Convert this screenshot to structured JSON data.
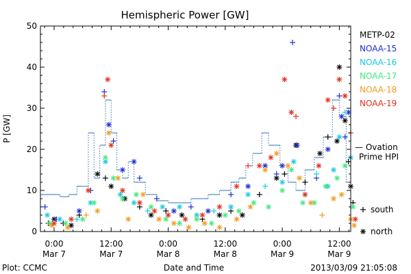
{
  "chart_data": {
    "type": "scatter",
    "title": "Hemispheric Power [GW]",
    "ylabel": "P [GW]",
    "xlabel": "Date and Time",
    "ylim": [
      0,
      50
    ],
    "yticks": [
      0,
      10,
      20,
      30,
      40,
      50
    ],
    "xlim": [
      -0.12,
      2.6
    ],
    "x_unit": "days since Mar 7 00:00 UT",
    "xticks": [
      {
        "x": 0.0,
        "line1": "0:00",
        "line2": "Mar 7"
      },
      {
        "x": 0.5,
        "line1": "12:00",
        "line2": "Mar 7"
      },
      {
        "x": 1.0,
        "line1": "0:00",
        "line2": "Mar 8"
      },
      {
        "x": 1.5,
        "line1": "12:00",
        "line2": "Mar 8"
      },
      {
        "x": 2.0,
        "line1": "0:00",
        "line2": "Mar 9"
      },
      {
        "x": 2.5,
        "line1": "12:00",
        "line2": "Mar 9"
      }
    ],
    "footer_left": "Plot: CCMC",
    "footer_right": "2013/03/09 21:05:08",
    "legend": [
      {
        "name": "METP-02",
        "color": "#000000"
      },
      {
        "name": "NOAA-15",
        "color": "#1a2ccf"
      },
      {
        "name": "NOAA-16",
        "color": "#19c8e0"
      },
      {
        "name": "NOAA-17",
        "color": "#3fe87a"
      },
      {
        "name": "NOAA-18",
        "color": "#f39a1e"
      },
      {
        "name": "NOAA-19",
        "color": "#e0301e"
      }
    ],
    "ovation": {
      "label_line1": "— Ovation",
      "label_line2": "Prime HPI",
      "color": "#2a70b8",
      "steps": [
        [
          -0.12,
          9
        ],
        [
          0.0,
          9
        ],
        [
          0.05,
          8.5
        ],
        [
          0.13,
          9
        ],
        [
          0.2,
          11
        ],
        [
          0.3,
          24
        ],
        [
          0.35,
          13
        ],
        [
          0.4,
          21
        ],
        [
          0.45,
          32
        ],
        [
          0.5,
          24
        ],
        [
          0.55,
          15
        ],
        [
          0.6,
          13
        ],
        [
          0.65,
          17
        ],
        [
          0.7,
          12
        ],
        [
          0.8,
          9
        ],
        [
          0.9,
          7.5
        ],
        [
          1.0,
          7
        ],
        [
          1.2,
          8
        ],
        [
          1.35,
          9
        ],
        [
          1.45,
          10
        ],
        [
          1.55,
          12
        ],
        [
          1.62,
          13
        ],
        [
          1.68,
          16
        ],
        [
          1.74,
          19
        ],
        [
          1.82,
          24
        ],
        [
          1.88,
          21
        ],
        [
          1.98,
          16
        ],
        [
          2.05,
          12
        ],
        [
          2.12,
          10
        ],
        [
          2.2,
          15
        ],
        [
          2.28,
          18
        ],
        [
          2.36,
          23
        ],
        [
          2.44,
          32
        ],
        [
          2.5,
          28
        ],
        [
          2.56,
          12
        ],
        [
          2.6,
          9
        ]
      ]
    },
    "marker_legend": [
      {
        "symbol": "+",
        "label": "south"
      },
      {
        "symbol": "*",
        "label": "north"
      }
    ],
    "series": [
      {
        "name": "METP-02",
        "color": "#000000",
        "points": [
          [
            -0.05,
            2,
            "+"
          ],
          [
            0.0,
            3,
            "*"
          ],
          [
            0.08,
            2,
            "+"
          ],
          [
            0.15,
            1.5,
            "*"
          ],
          [
            0.22,
            4,
            "+"
          ],
          [
            0.38,
            14,
            "*"
          ],
          [
            0.45,
            13,
            "+"
          ],
          [
            0.5,
            11,
            "*"
          ],
          [
            0.62,
            8,
            "*"
          ],
          [
            0.75,
            6,
            "+"
          ],
          [
            0.85,
            4,
            "*"
          ],
          [
            0.98,
            5,
            "+"
          ],
          [
            1.12,
            4,
            "*"
          ],
          [
            1.3,
            3,
            "+"
          ],
          [
            1.45,
            4,
            "*"
          ],
          [
            1.55,
            5,
            "+"
          ],
          [
            1.65,
            4,
            "*"
          ],
          [
            1.8,
            9,
            "+"
          ],
          [
            1.95,
            13,
            "*"
          ],
          [
            2.02,
            14,
            "+"
          ],
          [
            2.12,
            21,
            "*"
          ],
          [
            2.2,
            12,
            "+"
          ],
          [
            2.33,
            19,
            "*"
          ],
          [
            2.4,
            23,
            "+"
          ],
          [
            2.48,
            22,
            "*"
          ],
          [
            2.5,
            40,
            "*"
          ],
          [
            2.55,
            27,
            "*"
          ],
          [
            2.58,
            17,
            "+"
          ],
          [
            2.6,
            11,
            "*"
          ],
          [
            2.62,
            7,
            "+"
          ]
        ]
      },
      {
        "name": "NOAA-15",
        "color": "#1a2ccf",
        "points": [
          [
            -0.08,
            6,
            "+"
          ],
          [
            0.02,
            3,
            "+"
          ],
          [
            0.22,
            5,
            "*"
          ],
          [
            0.32,
            10,
            "+"
          ],
          [
            0.44,
            34,
            "+"
          ],
          [
            0.48,
            26,
            "*"
          ],
          [
            0.52,
            22,
            "+"
          ],
          [
            0.6,
            15,
            "*"
          ],
          [
            0.7,
            17,
            "*"
          ],
          [
            0.75,
            13,
            "+"
          ],
          [
            0.9,
            8,
            "+"
          ],
          [
            1.05,
            5,
            "*"
          ],
          [
            1.2,
            6,
            "+"
          ],
          [
            1.35,
            5,
            "*"
          ],
          [
            1.55,
            9,
            "+"
          ],
          [
            1.7,
            11,
            "*"
          ],
          [
            1.85,
            16,
            "*"
          ],
          [
            1.95,
            14,
            "+"
          ],
          [
            2.0,
            16,
            "*"
          ],
          [
            2.09,
            46,
            "+"
          ],
          [
            2.13,
            21,
            "*"
          ],
          [
            2.3,
            13,
            "+"
          ],
          [
            2.4,
            20,
            "*"
          ],
          [
            2.5,
            33,
            "+"
          ],
          [
            2.52,
            28,
            "*"
          ],
          [
            2.55,
            23,
            "+"
          ],
          [
            2.58,
            29,
            "*"
          ]
        ]
      },
      {
        "name": "NOAA-16",
        "color": "#19c8e0",
        "points": [
          [
            -0.06,
            4,
            "*"
          ],
          [
            0.05,
            3,
            "*"
          ],
          [
            0.2,
            3,
            "+"
          ],
          [
            0.32,
            7,
            "*"
          ],
          [
            0.45,
            17,
            "*"
          ],
          [
            0.58,
            9,
            "*"
          ],
          [
            0.7,
            7,
            "*"
          ],
          [
            0.82,
            5,
            "+"
          ],
          [
            0.95,
            6,
            "*"
          ],
          [
            1.1,
            6,
            "*"
          ],
          [
            1.25,
            4,
            "*"
          ],
          [
            1.4,
            5,
            "+"
          ],
          [
            1.55,
            6,
            "*"
          ],
          [
            1.7,
            9,
            "*"
          ],
          [
            1.85,
            11,
            "+"
          ],
          [
            2.0,
            12,
            "*"
          ],
          [
            2.1,
            17,
            "*"
          ],
          [
            2.2,
            9,
            "*"
          ],
          [
            2.3,
            14,
            "+"
          ],
          [
            2.4,
            11,
            "*"
          ],
          [
            2.45,
            15,
            "*"
          ],
          [
            2.5,
            23,
            "*"
          ],
          [
            2.55,
            29,
            "+"
          ],
          [
            2.6,
            18,
            "*"
          ]
        ]
      },
      {
        "name": "NOAA-17",
        "color": "#3fe87a",
        "points": [
          [
            -0.04,
            2,
            "*"
          ],
          [
            0.1,
            2,
            "*"
          ],
          [
            0.25,
            3,
            "*"
          ],
          [
            0.35,
            7,
            "*"
          ],
          [
            0.45,
            18,
            "*"
          ],
          [
            0.52,
            13,
            "*"
          ],
          [
            0.6,
            8,
            "*"
          ],
          [
            0.72,
            9,
            "*"
          ],
          [
            0.85,
            6,
            "*"
          ],
          [
            0.98,
            3,
            "*"
          ],
          [
            1.1,
            2,
            "*"
          ],
          [
            1.25,
            3,
            "*"
          ],
          [
            1.38,
            2,
            "*"
          ],
          [
            1.5,
            4,
            "*"
          ],
          [
            1.62,
            5,
            "*"
          ],
          [
            1.75,
            7,
            "*"
          ],
          [
            1.88,
            6,
            "*"
          ],
          [
            2.0,
            10,
            "*"
          ],
          [
            2.08,
            15,
            "*"
          ],
          [
            2.18,
            7,
            "*"
          ],
          [
            2.28,
            7,
            "*"
          ],
          [
            2.38,
            11,
            "*"
          ],
          [
            2.48,
            13,
            "*"
          ],
          [
            2.55,
            16,
            "*"
          ],
          [
            2.62,
            6,
            "*"
          ]
        ]
      },
      {
        "name": "NOAA-18",
        "color": "#f39a1e",
        "points": [
          [
            -0.02,
            1.5,
            "*"
          ],
          [
            0.12,
            1,
            "*"
          ],
          [
            0.28,
            4,
            "+"
          ],
          [
            0.38,
            5,
            "*"
          ],
          [
            0.48,
            24,
            "*"
          ],
          [
            0.56,
            13,
            "*"
          ],
          [
            0.65,
            3,
            "*"
          ],
          [
            0.78,
            9,
            "*"
          ],
          [
            0.92,
            3,
            "*"
          ],
          [
            1.05,
            2,
            "*"
          ],
          [
            1.18,
            1,
            "*"
          ],
          [
            1.32,
            2,
            "*"
          ],
          [
            1.45,
            1,
            "*"
          ],
          [
            1.6,
            3,
            "*"
          ],
          [
            1.72,
            6,
            "*"
          ],
          [
            1.85,
            15,
            "*"
          ],
          [
            1.95,
            19,
            "*"
          ],
          [
            2.05,
            16,
            "*"
          ],
          [
            2.15,
            13,
            "*"
          ],
          [
            2.25,
            7,
            "*"
          ],
          [
            2.35,
            4,
            "+"
          ],
          [
            2.45,
            8,
            "*"
          ],
          [
            2.52,
            9,
            "*"
          ],
          [
            2.6,
            3,
            "*"
          ],
          [
            2.63,
            1.5,
            "*"
          ]
        ]
      },
      {
        "name": "NOAA-19",
        "color": "#e0301e",
        "points": [
          [
            0.0,
            2,
            "*"
          ],
          [
            0.15,
            3,
            "*"
          ],
          [
            0.3,
            10,
            "*"
          ],
          [
            0.44,
            33,
            "+"
          ],
          [
            0.47,
            37,
            "*"
          ],
          [
            0.5,
            21,
            "*"
          ],
          [
            0.6,
            10,
            "*"
          ],
          [
            0.75,
            7,
            "*"
          ],
          [
            0.88,
            5,
            "*"
          ],
          [
            1.0,
            4,
            "*"
          ],
          [
            1.15,
            3,
            "*"
          ],
          [
            1.3,
            4,
            "*"
          ],
          [
            1.45,
            6,
            "*"
          ],
          [
            1.6,
            11,
            "*"
          ],
          [
            1.7,
            16,
            "+"
          ],
          [
            1.8,
            16,
            "*"
          ],
          [
            1.9,
            18,
            "*"
          ],
          [
            2.02,
            37,
            "*"
          ],
          [
            2.08,
            29,
            "*"
          ],
          [
            2.12,
            28,
            "+"
          ],
          [
            2.2,
            9,
            "*"
          ],
          [
            2.32,
            16,
            "*"
          ],
          [
            2.4,
            32,
            "*"
          ],
          [
            2.45,
            30,
            "+"
          ],
          [
            2.5,
            37,
            "*"
          ],
          [
            2.55,
            33,
            "*"
          ],
          [
            2.6,
            24,
            "+"
          ],
          [
            2.64,
            3,
            "*"
          ]
        ]
      }
    ]
  }
}
